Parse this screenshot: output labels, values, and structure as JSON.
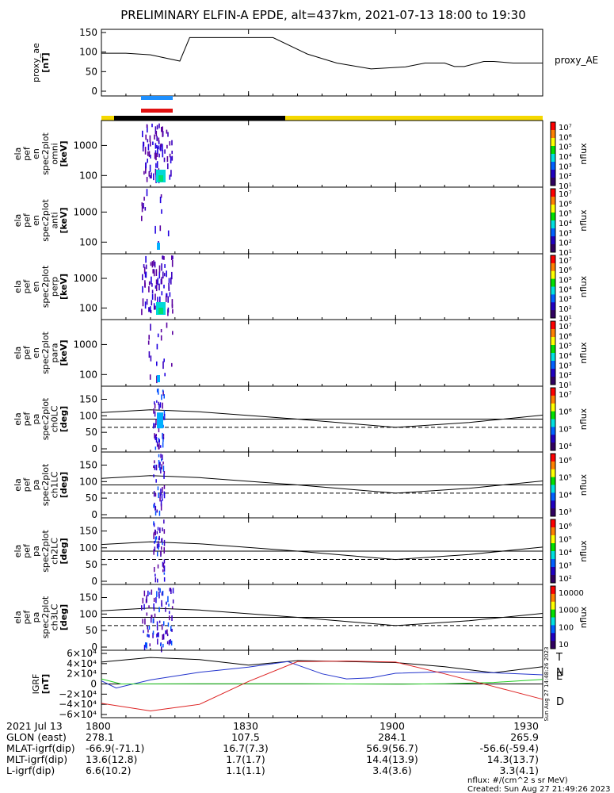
{
  "title": "PRELIMINARY ELFIN-A EPDE, alt=437km, 2021-07-13 18:00 to 19:30",
  "chart_data": {
    "type": "line",
    "panels": [
      {
        "id": "proxy_ae",
        "ylabel_lines": [
          "proxy_ae",
          "[nT]"
        ],
        "right_label": "proxy_AE",
        "yticks": [
          "150",
          "100",
          "50",
          "0"
        ],
        "ylim": [
          0,
          150
        ],
        "x_minutes": [
          0,
          5,
          10,
          16,
          18,
          25,
          35,
          42,
          48,
          55,
          62,
          66,
          70,
          72,
          74,
          78,
          80,
          84,
          90
        ],
        "values": [
          97,
          97,
          93,
          77,
          137,
          137,
          137,
          95,
          72,
          57,
          62,
          72,
          72,
          63,
          63,
          76,
          76,
          72,
          72
        ]
      },
      {
        "id": "spec-omni",
        "ylabel_lines": [
          "ela",
          "pef",
          "en",
          "spec2plot",
          "omni",
          "[keV]"
        ],
        "yticks": [
          "1000",
          "100"
        ],
        "cbar_label": "nflux"
      },
      {
        "id": "spec-anti",
        "ylabel_lines": [
          "ela",
          "pef",
          "en",
          "spec2plot",
          "anti",
          "[keV]"
        ],
        "yticks": [
          "1000",
          "100"
        ],
        "cbar_label": "nflux"
      },
      {
        "id": "spec-perp",
        "ylabel_lines": [
          "ela",
          "pef",
          "en",
          "spec2plot",
          "perp",
          "[keV]"
        ],
        "yticks": [
          "1000",
          "100"
        ],
        "cbar_label": "nflux"
      },
      {
        "id": "spec-para",
        "ylabel_lines": [
          "ela",
          "pef",
          "en",
          "spec2plot",
          "para",
          "[keV]"
        ],
        "yticks": [
          "1000",
          "100"
        ],
        "cbar_label": "nflux"
      },
      {
        "id": "pa-ch0",
        "ylabel_lines": [
          "ela",
          "pef",
          "pa",
          "spec2plot",
          "ch0LC",
          "[deg]"
        ],
        "yticks": [
          "150",
          "100",
          "50",
          "0"
        ],
        "cbar_label": "nflux"
      },
      {
        "id": "pa-ch1",
        "ylabel_lines": [
          "ela",
          "pef",
          "pa",
          "spec2plot",
          "ch1LC",
          "[deg]"
        ],
        "yticks": [
          "150",
          "100",
          "50",
          "0"
        ],
        "cbar_label": "nflux"
      },
      {
        "id": "pa-ch2",
        "ylabel_lines": [
          "ela",
          "pef",
          "pa",
          "spec2plot",
          "ch2LC",
          "[deg]"
        ],
        "yticks": [
          "150",
          "100",
          "50",
          "0"
        ],
        "cbar_label": "nflux"
      },
      {
        "id": "pa-ch3",
        "ylabel_lines": [
          "ela",
          "pef",
          "pa",
          "spec2plot",
          "ch3LC",
          "[deg]"
        ],
        "yticks": [
          "150",
          "100",
          "50",
          "0"
        ],
        "cbar_label": "nflux"
      },
      {
        "id": "igrf",
        "ylabel_lines": [
          "IGRF",
          "[nT]"
        ],
        "yticks": [
          "6×10⁴",
          "4×10⁴",
          "2×10⁴",
          "0",
          "−2×10⁴",
          "−4×10⁴",
          "−6×10⁴"
        ],
        "ylim": [
          -60000,
          60000
        ],
        "series": [
          {
            "name": "T",
            "color": "#000000",
            "x_minutes": [
              0,
              10,
              20,
              30,
              40,
              50,
              60,
              70,
              80,
              90
            ],
            "values": [
              43000,
              52000,
              48000,
              37000,
              46000,
              44000,
              42000,
              34000,
              22000,
              34000
            ]
          },
          {
            "name": "N",
            "color": "#2233cc",
            "x_minutes": [
              0,
              3,
              10,
              20,
              30,
              38,
              45,
              50,
              55,
              60,
              70,
              80,
              90
            ],
            "values": [
              6000,
              -8000,
              8000,
              23000,
              33000,
              44000,
              20000,
              10000,
              12000,
              21000,
              24000,
              22000,
              18000
            ]
          },
          {
            "name": "E",
            "color": "#22cc22",
            "x_minutes": [
              0,
              4,
              20,
              40,
              60,
              70,
              80,
              90
            ],
            "values": [
              10000,
              0,
              500,
              500,
              -500,
              500,
              3000,
              9000
            ]
          },
          {
            "name": "D",
            "color": "#dd2222",
            "x_minutes": [
              0,
              10,
              20,
              30,
              40,
              50,
              60,
              70,
              80,
              90
            ],
            "values": [
              -38000,
              -53000,
              -40000,
              5000,
              44000,
              45000,
              43000,
              20000,
              -5000,
              -30000
            ]
          }
        ]
      }
    ],
    "spectra_colorbar_ticks": [
      "10⁷",
      "10⁶",
      "10⁵",
      "10⁴",
      "10³",
      "10²",
      "10¹"
    ],
    "pa_colorbar_ticks": [
      [
        "10⁷",
        "10⁶",
        "10⁵",
        "10⁴"
      ],
      [
        "10⁶",
        "10⁵",
        "10⁴",
        "10³"
      ],
      [
        "10⁶",
        "10⁵",
        "10⁴",
        "10³",
        "10²"
      ],
      [
        "10000",
        "1000",
        "100",
        "10"
      ]
    ],
    "x_ticks": [
      "1800",
      "1830",
      "1900",
      "1930"
    ],
    "x_range_minutes": [
      0,
      90
    ]
  },
  "footer": {
    "rows": [
      {
        "label": "2021 Jul 13",
        "values": [
          "1800",
          "1830",
          "1900",
          "1930"
        ]
      },
      {
        "label": "GLON (east)",
        "values": [
          "278.1",
          "107.5",
          "284.1",
          "265.9"
        ]
      },
      {
        "label": "MLAT-igrf(dip)",
        "values": [
          "-66.9(-71.1)",
          "16.7(7.3)",
          "56.9(56.7)",
          "-56.6(-59.4)"
        ]
      },
      {
        "label": "MLT-igrf(dip)",
        "values": [
          "13.6(12.8)",
          "1.7(1.7)",
          "14.4(13.9)",
          "14.3(13.7)"
        ]
      },
      {
        "label": "L-igrf(dip)",
        "values": [
          "6.6(10.2)",
          "1.1(1.1)",
          "3.4(3.6)",
          "3.3(4.1)"
        ]
      }
    ],
    "units_note": "nflux: #/(cm^2 s sr MeV)",
    "created": "Created: Sun Aug 27 21:49:26 2023",
    "side_stamp": "Sun Aug 27 14:48:26 2023"
  },
  "colors": {
    "blue_bar": "#1e90ff",
    "red_bar": "#e01010",
    "sun": "#f5d800",
    "shadow": "#000000"
  }
}
